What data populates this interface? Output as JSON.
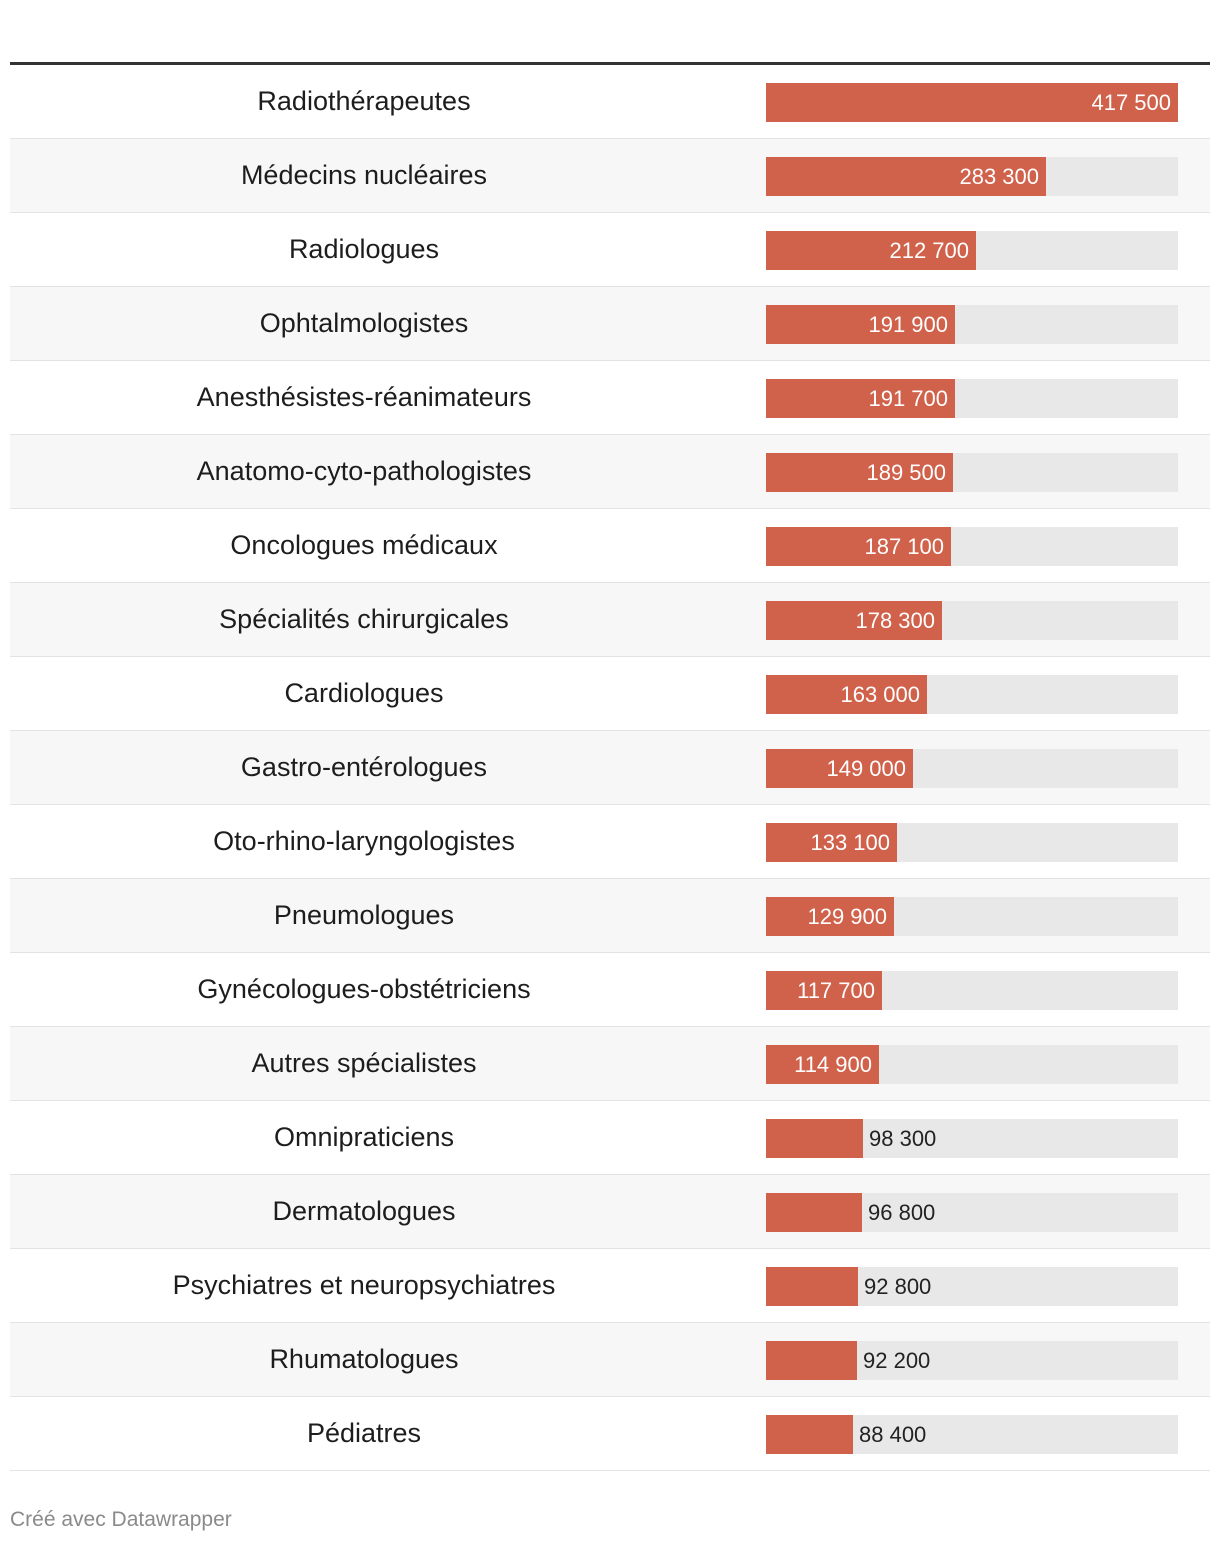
{
  "chart_data": {
    "type": "table",
    "unit_format": "space-separated thousands",
    "max": 417500,
    "rows": [
      {
        "label": "Radiothérapeutes",
        "value": 417500,
        "value_label": "417 500"
      },
      {
        "label": "Médecins nucléaires",
        "value": 283300,
        "value_label": "283 300"
      },
      {
        "label": "Radiologues",
        "value": 212700,
        "value_label": "212 700"
      },
      {
        "label": "Ophtalmologistes",
        "value": 191900,
        "value_label": "191 900"
      },
      {
        "label": "Anesthésistes-réanimateurs",
        "value": 191700,
        "value_label": "191 700"
      },
      {
        "label": "Anatomo-cyto-pathologistes",
        "value": 189500,
        "value_label": "189 500"
      },
      {
        "label": "Oncologues médicaux",
        "value": 187100,
        "value_label": "187 100"
      },
      {
        "label": "Spécialités chirurgicales",
        "value": 178300,
        "value_label": "178 300"
      },
      {
        "label": "Cardiologues",
        "value": 163000,
        "value_label": "163 000"
      },
      {
        "label": "Gastro-entérologues",
        "value": 149000,
        "value_label": "149 000"
      },
      {
        "label": "Oto-rhino-laryngologistes",
        "value": 133100,
        "value_label": "133 100"
      },
      {
        "label": "Pneumologues",
        "value": 129900,
        "value_label": "129 900"
      },
      {
        "label": "Gynécologues-obstétriciens",
        "value": 117700,
        "value_label": "117 700"
      },
      {
        "label": "Autres spécialistes",
        "value": 114900,
        "value_label": "114 900"
      },
      {
        "label": "Omnipraticiens",
        "value": 98300,
        "value_label": "98 300"
      },
      {
        "label": "Dermatologues",
        "value": 96800,
        "value_label": "96 800"
      },
      {
        "label": "Psychiatres et neuropsychiatres",
        "value": 92800,
        "value_label": "92 800"
      },
      {
        "label": "Rhumatologues",
        "value": 92200,
        "value_label": "92 200"
      },
      {
        "label": "Pédiatres",
        "value": 88400,
        "value_label": "88 400"
      }
    ]
  },
  "colors": {
    "bar": "#d0614a",
    "track": "#e8e8e8",
    "stripe": "#f7f7f7"
  },
  "footer": {
    "credit": "Créé avec Datawrapper"
  }
}
